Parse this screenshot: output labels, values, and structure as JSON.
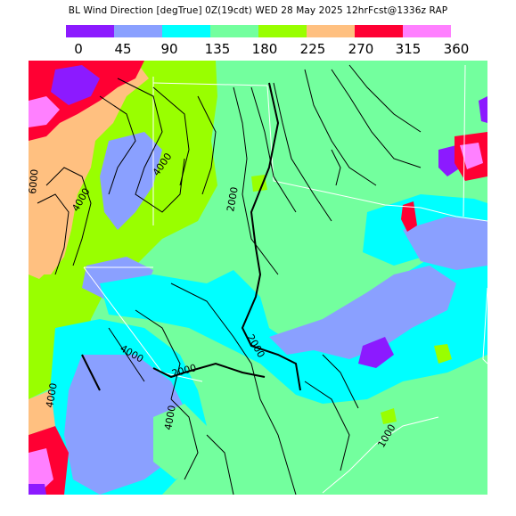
{
  "title": "BL Wind Direction [degTrue] 0Z(19cdt) WED 28 May 2025 12hrFcst@1336z RAP",
  "legend": {
    "ticks": [
      "0",
      "45",
      "90",
      "135",
      "180",
      "225",
      "270",
      "315",
      "360"
    ],
    "colors": [
      "#8c1aff",
      "#8aa0ff",
      "#00ffff",
      "#73ff9e",
      "#99ff00",
      "#ffc080",
      "#ff0033",
      "#ff80ff"
    ]
  },
  "map": {
    "contour_labels": [
      "6000",
      "4000",
      "4000",
      "2000",
      "2000",
      "2000",
      "4000",
      "4000",
      "4000",
      "1000"
    ]
  }
}
